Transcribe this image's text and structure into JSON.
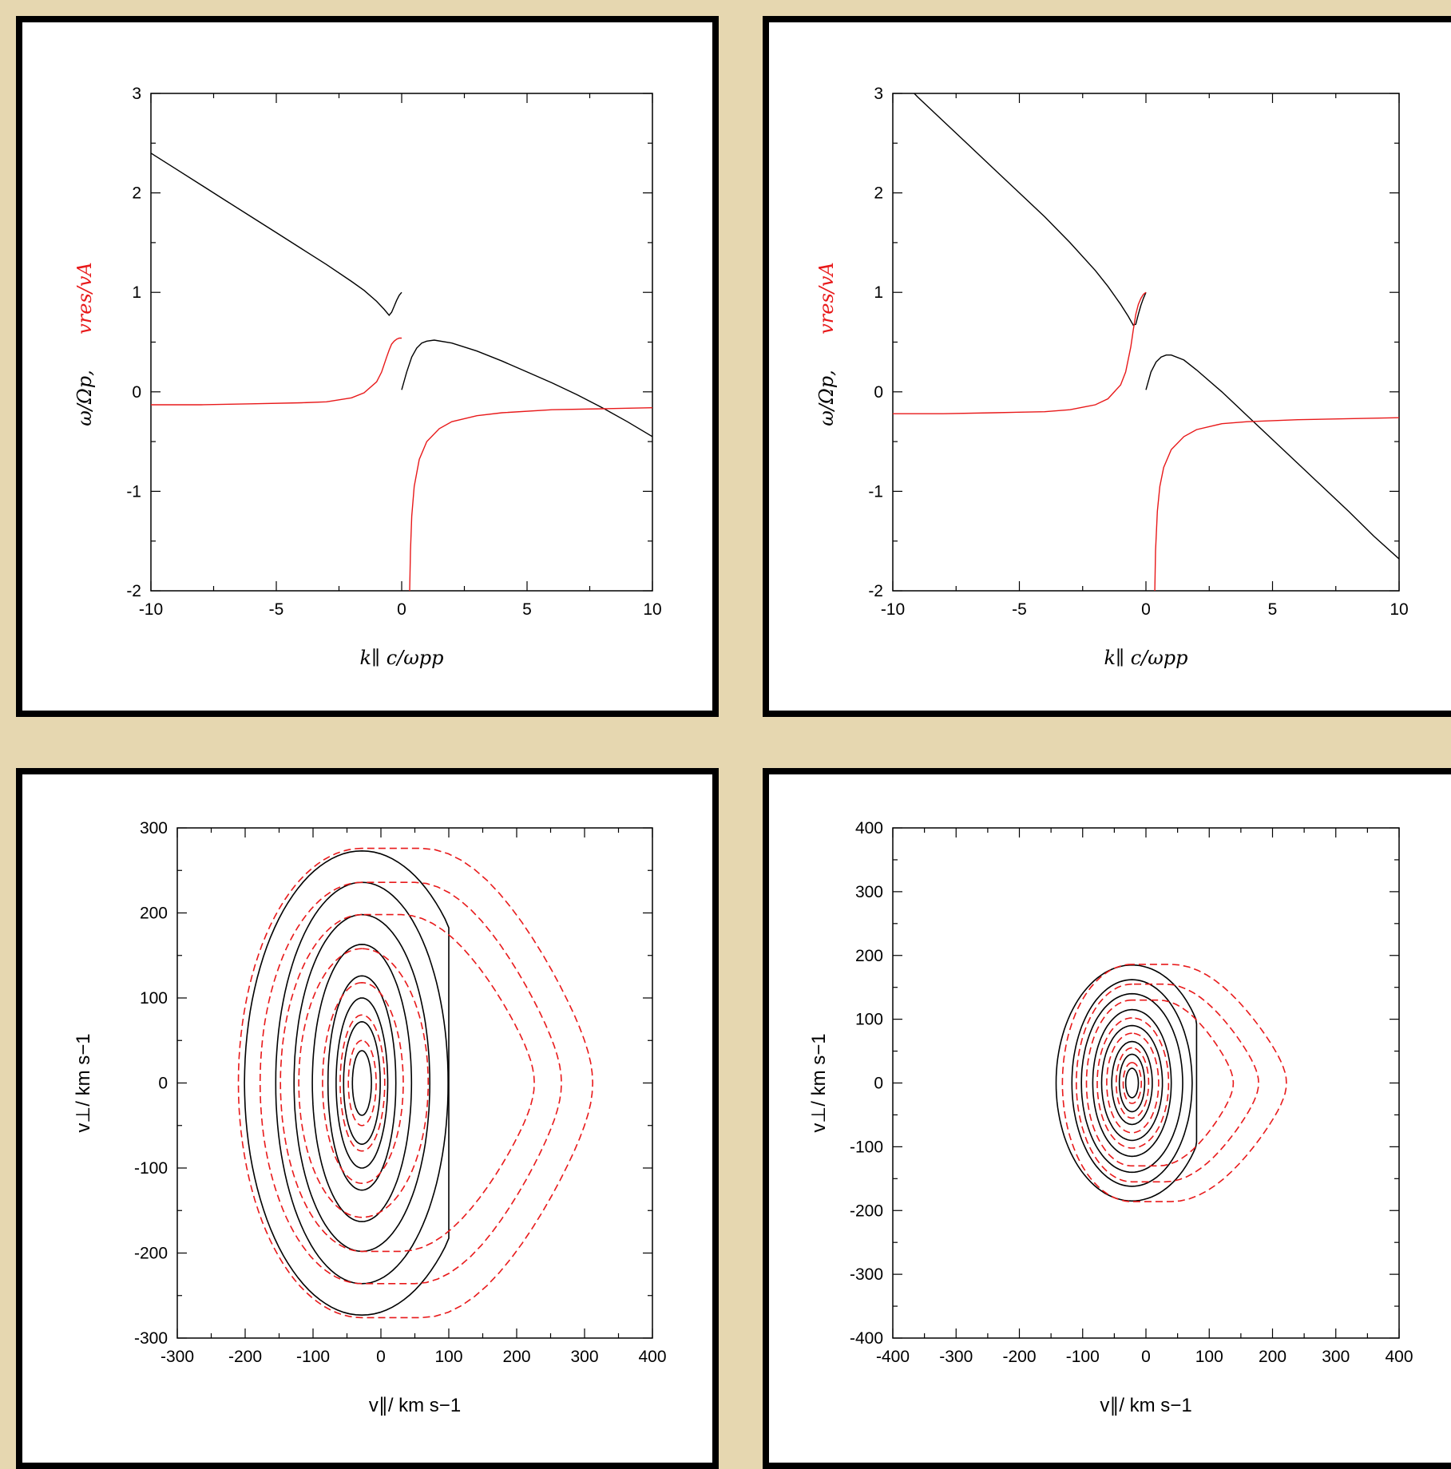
{
  "colors": {
    "background": "#e6d7b0",
    "black_curve": "#000000",
    "red_curve": "#e8191a"
  },
  "chart_data": [
    {
      "type": "line",
      "panel": "top-left",
      "xlabel": "k∥ c/ωpp",
      "ylabel_black": "ω/Ωp,",
      "ylabel_red": "vres/vA",
      "xlim": [
        -10,
        10
      ],
      "ylim": [
        -2,
        3
      ],
      "xticks": [
        -10,
        -5,
        0,
        5,
        10
      ],
      "yticks": [
        -2,
        -1,
        0,
        1,
        2,
        3
      ],
      "xtick_labels": [
        "-10",
        "-5",
        "0",
        "5",
        "10"
      ],
      "ytick_labels": [
        "-2",
        "-1",
        "0",
        "1",
        "2",
        "3"
      ],
      "series": [
        {
          "color": "black",
          "x": [
            -10,
            -9,
            -8,
            -7,
            -6,
            -5,
            -4,
            -3,
            -2,
            -1.5,
            -1,
            -0.7,
            -0.5,
            -0.4,
            -0.3,
            -0.2,
            -0.1,
            0
          ],
          "y": [
            2.4,
            2.24,
            2.08,
            1.92,
            1.76,
            1.6,
            1.44,
            1.28,
            1.11,
            1.02,
            0.91,
            0.83,
            0.77,
            0.8,
            0.86,
            0.92,
            0.97,
            1.0
          ]
        },
        {
          "color": "black",
          "x": [
            0,
            0.2,
            0.4,
            0.6,
            0.8,
            1.0,
            1.3,
            2,
            3,
            4,
            5,
            6,
            7,
            8,
            9,
            10
          ],
          "y": [
            0.02,
            0.2,
            0.35,
            0.44,
            0.49,
            0.51,
            0.52,
            0.49,
            0.41,
            0.31,
            0.2,
            0.09,
            -0.03,
            -0.16,
            -0.3,
            -0.45
          ]
        },
        {
          "color": "red",
          "x": [
            -10,
            -8,
            -6,
            -4,
            -3,
            -2,
            -1.5,
            -1,
            -0.8,
            -0.6,
            -0.5,
            -0.4,
            -0.3,
            -0.2,
            -0.1,
            0
          ],
          "y": [
            -0.13,
            -0.13,
            -0.12,
            -0.11,
            -0.1,
            -0.06,
            -0.01,
            0.1,
            0.2,
            0.35,
            0.42,
            0.48,
            0.51,
            0.53,
            0.54,
            0.54
          ]
        },
        {
          "color": "red",
          "x": [
            0.32,
            0.35,
            0.4,
            0.5,
            0.7,
            1,
            1.5,
            2,
            3,
            4,
            6,
            8,
            10
          ],
          "y": [
            -2,
            -1.6,
            -1.25,
            -0.95,
            -0.68,
            -0.5,
            -0.37,
            -0.3,
            -0.24,
            -0.21,
            -0.18,
            -0.17,
            -0.16
          ]
        }
      ]
    },
    {
      "type": "line",
      "panel": "top-right",
      "xlabel": "k∥ c/ωpp",
      "ylabel_black": "ω/Ωp,",
      "ylabel_red": "vres/vA",
      "xlim": [
        -10,
        10
      ],
      "ylim": [
        -2,
        3
      ],
      "xticks": [
        -10,
        -5,
        0,
        5,
        10
      ],
      "yticks": [
        -2,
        -1,
        0,
        1,
        2,
        3
      ],
      "xtick_labels": [
        "-10",
        "-5",
        "0",
        "5",
        "10"
      ],
      "ytick_labels": [
        "-2",
        "-1",
        "0",
        "1",
        "2",
        "3"
      ],
      "series": [
        {
          "color": "black",
          "x": [
            -10,
            -9,
            -8,
            -7,
            -6,
            -5,
            -4,
            -3,
            -2,
            -1.5,
            -1,
            -0.7,
            -0.5,
            -0.4,
            -0.3,
            -0.2,
            -0.1,
            0
          ],
          "y": [
            3.22,
            2.96,
            2.72,
            2.48,
            2.24,
            2.0,
            1.76,
            1.5,
            1.22,
            1.06,
            0.88,
            0.76,
            0.67,
            0.68,
            0.78,
            0.87,
            0.94,
            1.0
          ]
        },
        {
          "color": "black",
          "x": [
            0,
            0.2,
            0.4,
            0.6,
            0.8,
            1.0,
            1.5,
            2,
            3,
            4,
            5,
            6,
            7,
            8,
            9,
            10
          ],
          "y": [
            0.02,
            0.2,
            0.3,
            0.35,
            0.37,
            0.37,
            0.32,
            0.22,
            0.0,
            -0.24,
            -0.48,
            -0.72,
            -0.96,
            -1.2,
            -1.45,
            -1.68
          ]
        },
        {
          "color": "red",
          "x": [
            -10,
            -8,
            -6,
            -4,
            -3,
            -2,
            -1.5,
            -1,
            -0.8,
            -0.6,
            -0.5,
            -0.4,
            -0.3,
            -0.2,
            -0.1,
            0
          ],
          "y": [
            -0.22,
            -0.22,
            -0.21,
            -0.2,
            -0.18,
            -0.13,
            -0.07,
            0.07,
            0.2,
            0.45,
            0.62,
            0.78,
            0.88,
            0.94,
            0.98,
            1.0
          ]
        },
        {
          "color": "red",
          "x": [
            0.35,
            0.38,
            0.45,
            0.55,
            0.7,
            1,
            1.5,
            2,
            3,
            4,
            6,
            8,
            10
          ],
          "y": [
            -2,
            -1.6,
            -1.2,
            -0.95,
            -0.76,
            -0.58,
            -0.45,
            -0.38,
            -0.32,
            -0.3,
            -0.28,
            -0.27,
            -0.26
          ]
        }
      ]
    },
    {
      "type": "contour",
      "panel": "bottom-left",
      "xlabel": "v∥/ km s−1",
      "ylabel": "v⊥/ km s−1",
      "xlim": [
        -300,
        400
      ],
      "ylim": [
        -300,
        300
      ],
      "xticks": [
        -300,
        -200,
        -100,
        0,
        100,
        200,
        300,
        400
      ],
      "yticks": [
        -300,
        -200,
        -100,
        0,
        100,
        200,
        300
      ],
      "xtick_labels": [
        "-300",
        "-200",
        "-100",
        "0",
        "100",
        "200",
        "300",
        "400"
      ],
      "ytick_labels": [
        "-300",
        "-200",
        "-100",
        "0",
        "100",
        "200",
        "300"
      ],
      "black_center": [
        -28,
        0
      ],
      "black_contours": [
        {
          "rx": 14,
          "ry": 38,
          "cut": 100
        },
        {
          "rx": 27,
          "ry": 72,
          "cut": 100
        },
        {
          "rx": 38,
          "ry": 100,
          "cut": 100
        },
        {
          "rx": 50,
          "ry": 126,
          "cut": 100
        },
        {
          "rx": 73,
          "ry": 163,
          "cut": 100
        },
        {
          "rx": 100,
          "ry": 198,
          "cut": 100
        },
        {
          "rx": 127,
          "ry": 236,
          "cut": 100
        },
        {
          "rx": 173,
          "ry": 273,
          "cut": 100
        }
      ],
      "red_contours": [
        {
          "rx_left": 20,
          "ry": 50,
          "cut": 1000,
          "bump": 0
        },
        {
          "rx_left": 32,
          "ry": 80,
          "cut": 1000,
          "bump": 0
        },
        {
          "rx_left": 58,
          "ry": 118,
          "cut": 1000,
          "bump": 0
        },
        {
          "rx_left": 93,
          "ry": 158,
          "cut": 1000,
          "bump": 0
        },
        {
          "rx_left": 120,
          "ry": 198,
          "cut": 30,
          "bump": 226
        },
        {
          "rx_left": 150,
          "ry": 236,
          "cut": 50,
          "bump": 266
        },
        {
          "rx_left": 182,
          "ry": 276,
          "cut": 60,
          "bump": 312
        }
      ]
    },
    {
      "type": "contour",
      "panel": "bottom-right",
      "xlabel": "v∥/ km s−1",
      "ylabel": "v⊥/ km s−1",
      "xlim": [
        -400,
        400
      ],
      "ylim": [
        -400,
        400
      ],
      "xticks": [
        -400,
        -300,
        -200,
        -100,
        0,
        100,
        200,
        300,
        400
      ],
      "yticks": [
        -400,
        -300,
        -200,
        -100,
        0,
        100,
        200,
        300,
        400
      ],
      "xtick_labels": [
        "-400",
        "-300",
        "-200",
        "-100",
        "0",
        "100",
        "200",
        "300",
        "400"
      ],
      "ytick_labels": [
        "-400",
        "-300",
        "-200",
        "-100",
        "0",
        "100",
        "200",
        "300",
        "400"
      ],
      "black_center": [
        -22,
        0
      ],
      "black_contours": [
        {
          "rx": 10,
          "ry": 23,
          "cut": 80
        },
        {
          "rx": 20,
          "ry": 45,
          "cut": 80
        },
        {
          "rx": 32,
          "ry": 65,
          "cut": 80
        },
        {
          "rx": 48,
          "ry": 90,
          "cut": 80
        },
        {
          "rx": 62,
          "ry": 115,
          "cut": 80
        },
        {
          "rx": 80,
          "ry": 140,
          "cut": 80
        },
        {
          "rx": 95,
          "ry": 162,
          "cut": 80
        },
        {
          "rx": 120,
          "ry": 185,
          "cut": 80
        }
      ],
      "red_contours": [
        {
          "rx_left": 14,
          "ry": 32,
          "cut": 1000,
          "bump": 0
        },
        {
          "rx_left": 25,
          "ry": 55,
          "cut": 1000,
          "bump": 0
        },
        {
          "rx_left": 40,
          "ry": 78,
          "cut": 1000,
          "bump": 0
        },
        {
          "rx_left": 55,
          "ry": 102,
          "cut": 1000,
          "bump": 0
        },
        {
          "rx_left": 72,
          "ry": 130,
          "cut": 20,
          "bump": 138
        },
        {
          "rx_left": 88,
          "ry": 155,
          "cut": 30,
          "bump": 178
        },
        {
          "rx_left": 110,
          "ry": 186,
          "cut": 40,
          "bump": 222
        }
      ]
    }
  ]
}
